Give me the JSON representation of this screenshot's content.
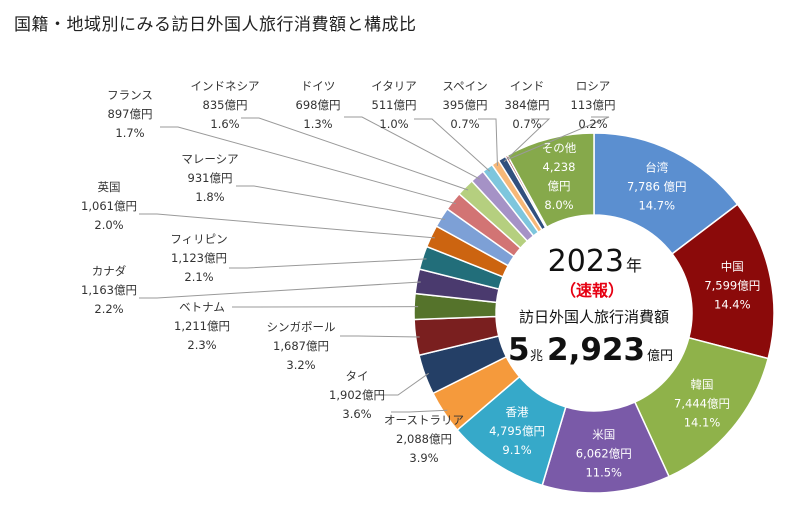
{
  "title": "国籍・地域別にみる訪日外国人旅行消費額と構成比",
  "chart_data": {
    "type": "pie",
    "donut": true,
    "center": {
      "year": "2023",
      "year_unit": "年",
      "flash": "（速報）",
      "caption": "訪日外国人旅行消費額",
      "total_major": "5",
      "total_major_unit": "兆",
      "total_minor": "2,923",
      "total_minor_unit": "億円"
    },
    "slices": [
      {
        "name": "台湾",
        "amount": "7,786 億円",
        "share": "14.7%",
        "value": 14.7,
        "color": "#5b8fd0",
        "label": "inside"
      },
      {
        "name": "中国",
        "amount": "7,599億円",
        "share": "14.4%",
        "value": 14.4,
        "color": "#8b0a0a",
        "label": "inside"
      },
      {
        "name": "韓国",
        "amount": "7,444億円",
        "share": "14.1%",
        "value": 14.1,
        "color": "#8fb24a",
        "label": "inside"
      },
      {
        "name": "米国",
        "amount": "6,062億円",
        "share": "11.5%",
        "value": 11.5,
        "color": "#7a5aa8",
        "label": "inside"
      },
      {
        "name": "香港",
        "amount": "4,795億円",
        "share": "9.1%",
        "value": 9.1,
        "color": "#36a9c9",
        "label": "inside"
      },
      {
        "name": "オーストラリア",
        "amount": "2,088億円",
        "share": "3.9%",
        "value": 3.9,
        "color": "#f59a3c",
        "label": "outside"
      },
      {
        "name": "タイ",
        "amount": "1,902億円",
        "share": "3.6%",
        "value": 3.6,
        "color": "#243f66",
        "label": "outside"
      },
      {
        "name": "シンガポール",
        "amount": "1,687億円",
        "share": "3.2%",
        "value": 3.2,
        "color": "#7a1f1f",
        "label": "outside"
      },
      {
        "name": "ベトナム",
        "amount": "1,211億円",
        "share": "2.3%",
        "value": 2.3,
        "color": "#55732b",
        "label": "outside"
      },
      {
        "name": "カナダ",
        "amount": "1,163億円",
        "share": "2.2%",
        "value": 2.2,
        "color": "#4a3a6e",
        "label": "outside"
      },
      {
        "name": "フィリピン",
        "amount": "1,123億円",
        "share": "2.1%",
        "value": 2.1,
        "color": "#226e7a",
        "label": "outside"
      },
      {
        "name": "英国",
        "amount": "1,061億円",
        "share": "2.0%",
        "value": 2.0,
        "color": "#cc6410",
        "label": "outside"
      },
      {
        "name": "マレーシア",
        "amount": "931億円",
        "share": "1.8%",
        "value": 1.8,
        "color": "#7da0d6",
        "label": "outside"
      },
      {
        "name": "フランス",
        "amount": "897億円",
        "share": "1.7%",
        "value": 1.7,
        "color": "#d27474",
        "label": "outside"
      },
      {
        "name": "インドネシア",
        "amount": "835億円",
        "share": "1.6%",
        "value": 1.6,
        "color": "#b5cf7f",
        "label": "outside"
      },
      {
        "name": "ドイツ",
        "amount": "698億円",
        "share": "1.3%",
        "value": 1.3,
        "color": "#a592c6",
        "label": "outside"
      },
      {
        "name": "イタリア",
        "amount": "511億円",
        "share": "1.0%",
        "value": 1.0,
        "color": "#7ec6dd",
        "label": "outside"
      },
      {
        "name": "スペイン",
        "amount": "395億円",
        "share": "0.7%",
        "value": 0.7,
        "color": "#f7b878",
        "label": "outside"
      },
      {
        "name": "インド",
        "amount": "384億円",
        "share": "0.7%",
        "value": 0.7,
        "color": "#31507e",
        "label": "outside"
      },
      {
        "name": "ロシア",
        "amount": "113億円",
        "share": "0.2%",
        "value": 0.2,
        "color": "#9c3a3a",
        "label": "outside"
      },
      {
        "name": "その他",
        "amount": "4,238\n億円",
        "share": "8.0%",
        "value": 8.0,
        "color": "#86a94b",
        "label": "inside"
      }
    ]
  }
}
